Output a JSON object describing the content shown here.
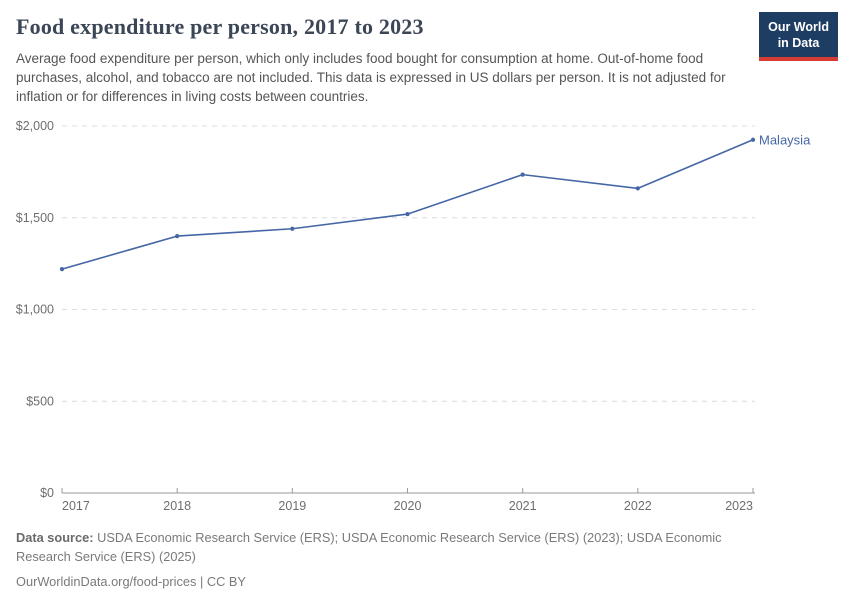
{
  "header": {
    "title": "Food expenditure per person, 2017 to 2023",
    "subtitle": "Average food expenditure per person, which only includes food bought for consumption at home. Out-of-home food purchases, alcohol, and tobacco are not included. This data is expressed in US dollars per person. It is not adjusted for inflation or for differences in living costs between countries.",
    "logo": {
      "line1": "Our World",
      "line2": "in Data",
      "bg_color": "#1d3d63",
      "stripe_color": "#d73c34"
    }
  },
  "chart_data": {
    "type": "line",
    "title": "Food expenditure per person, 2017 to 2023",
    "x": [
      2017,
      2018,
      2019,
      2020,
      2021,
      2022,
      2023
    ],
    "x_labels": [
      "2017",
      "2018",
      "2019",
      "2020",
      "2021",
      "2022",
      "2023"
    ],
    "series": [
      {
        "name": "Malaysia",
        "color": "#4566a5",
        "values": [
          1220,
          1400,
          1440,
          1520,
          1735,
          1660,
          1925
        ]
      }
    ],
    "ylim": [
      0,
      2000
    ],
    "yticks": [
      0,
      500,
      1000,
      1500,
      2000
    ],
    "ytick_labels": [
      "$0",
      "$500",
      "$1,000",
      "$1,500",
      "$2,000"
    ],
    "ylabel": "",
    "xlabel": "",
    "grid": "horizontal-dashed",
    "legend_position": "end-of-line-label",
    "axis_text_color": "#6e6e6e",
    "grid_color": "#dcdcdc",
    "axis_line_color": "#9a9a9a"
  },
  "footer": {
    "source_label": "Data source:",
    "sources": "USDA Economic Research Service (ERS); USDA Economic Research Service (ERS) (2023); USDA Economic Research Service (ERS) (2025)",
    "license": "OurWorldinData.org/food-prices | CC BY"
  }
}
